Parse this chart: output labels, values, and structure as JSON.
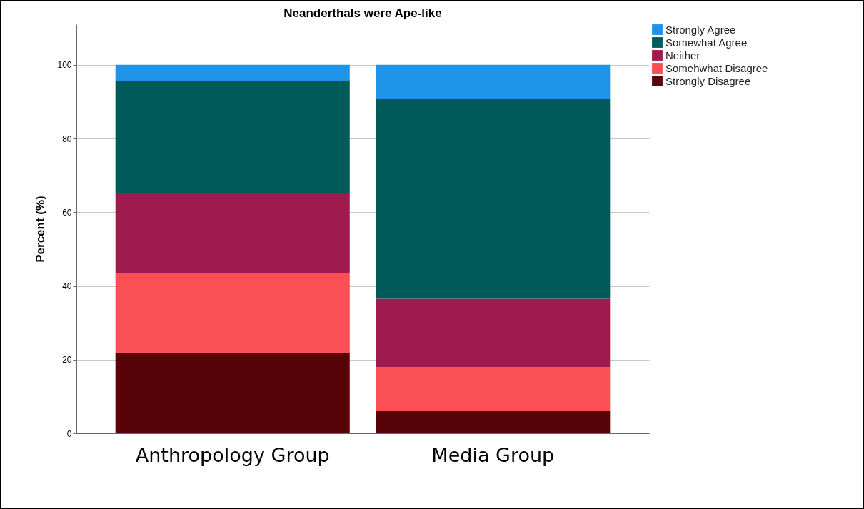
{
  "chart_data": {
    "type": "bar",
    "title": "Neanderthals were Ape-like",
    "ylabel": "Percent (%)",
    "categories": [
      "Anthropology Group",
      "Media Group"
    ],
    "stacked": true,
    "series": [
      {
        "name": "Strongly Disagree",
        "color": "#570308",
        "values": [
          21.7,
          6.0
        ]
      },
      {
        "name": "Somehwhat Disagree",
        "color": "#fa4f55",
        "values": [
          21.8,
          11.9
        ]
      },
      {
        "name": "Neither",
        "color": "#9e1a4f",
        "values": [
          21.7,
          18.6
        ]
      },
      {
        "name": "Somewhat Agree",
        "color": "#005a5a",
        "values": [
          30.3,
          54.2
        ]
      },
      {
        "name": "Strongly Agree",
        "color": "#1f93e6",
        "values": [
          4.5,
          9.3
        ]
      }
    ],
    "ylim": [
      0,
      111
    ],
    "yticks": [
      0,
      20,
      40,
      60,
      80,
      100
    ],
    "grid": "y",
    "legend": "top right"
  }
}
